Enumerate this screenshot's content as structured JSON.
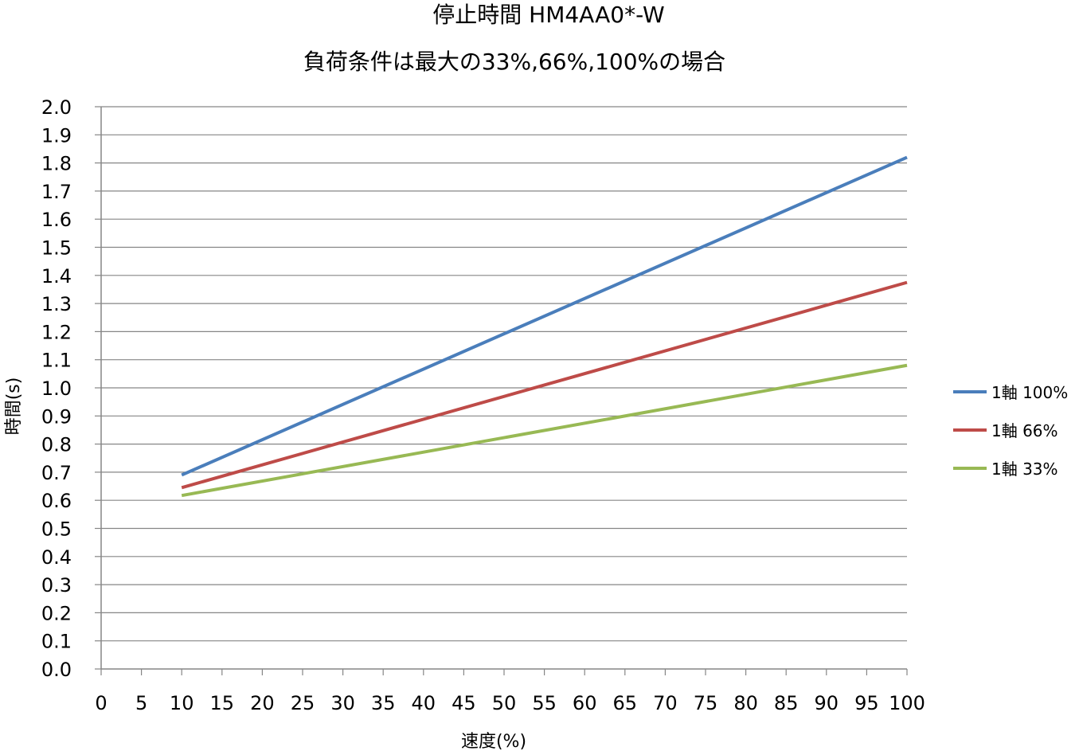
{
  "chart_data": {
    "type": "line",
    "title": "停止時間 HM4AA0*-W",
    "subtitle": "負荷条件は最大の33%,66%,100%の場合",
    "xlabel": "速度(%)",
    "ylabel": "時間(s)",
    "xlim": [
      0,
      100
    ],
    "ylim": [
      0,
      2.0
    ],
    "x_ticks": [
      "0",
      "5",
      "10",
      "15",
      "20",
      "25",
      "30",
      "35",
      "40",
      "45",
      "50",
      "55",
      "60",
      "65",
      "70",
      "75",
      "80",
      "85",
      "90",
      "95",
      "100"
    ],
    "y_ticks": [
      "0.0",
      "0.1",
      "0.2",
      "0.3",
      "0.4",
      "0.5",
      "0.6",
      "0.7",
      "0.8",
      "0.9",
      "1.0",
      "1.1",
      "1.2",
      "1.3",
      "1.4",
      "1.5",
      "1.6",
      "1.7",
      "1.8",
      "1.9",
      "2.0"
    ],
    "grid": "horizontal",
    "legend_position": "right",
    "series": [
      {
        "name": "1軸 100%",
        "color": "#4a7ebb",
        "x": [
          10,
          100
        ],
        "y": [
          0.69,
          1.82
        ]
      },
      {
        "name": "1軸 66%",
        "color": "#be4b48",
        "x": [
          10,
          100
        ],
        "y": [
          0.645,
          1.375
        ]
      },
      {
        "name": "1軸 33%",
        "color": "#98b954",
        "x": [
          10,
          100
        ],
        "y": [
          0.617,
          1.08
        ]
      }
    ]
  }
}
